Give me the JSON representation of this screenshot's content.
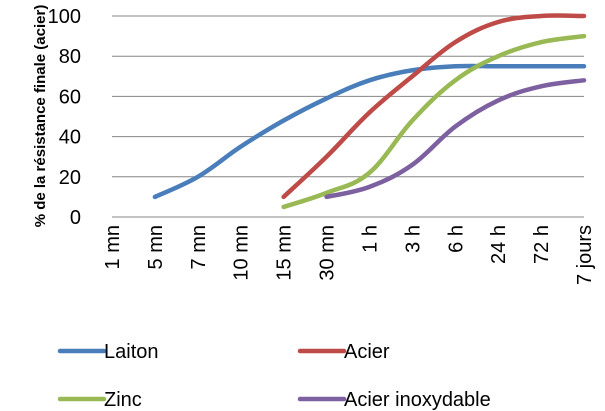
{
  "chart_data": {
    "type": "line",
    "title": "",
    "xlabel": "",
    "ylabel": "% de la résistance finale (acier)",
    "categories": [
      "1 mn",
      "5 mn",
      "7 mn",
      "10 mn",
      "15 mn",
      "30 mn",
      "1 h",
      "3 h",
      "6 h",
      "24 h",
      "72 h",
      "7 jours"
    ],
    "ylim": [
      0,
      100
    ],
    "yticks": [
      0,
      20,
      40,
      60,
      80,
      100
    ],
    "grid": true,
    "legend_position": "bottom",
    "series": [
      {
        "name": "Laiton",
        "color": "#4a7ebb",
        "values": [
          null,
          10,
          20,
          35,
          48,
          59,
          68,
          73,
          75,
          75,
          75,
          75
        ]
      },
      {
        "name": "Acier",
        "color": "#be4b48",
        "values": [
          null,
          null,
          null,
          null,
          10,
          30,
          52,
          70,
          87,
          97,
          100,
          100
        ]
      },
      {
        "name": "Zinc",
        "color": "#98b954",
        "values": [
          null,
          null,
          null,
          null,
          5,
          12,
          22,
          48,
          68,
          80,
          87,
          90
        ]
      },
      {
        "name": "Acier inoxydable",
        "color": "#7d60a0",
        "values": [
          null,
          null,
          null,
          null,
          null,
          10,
          15,
          26,
          45,
          58,
          65,
          68
        ]
      }
    ]
  }
}
